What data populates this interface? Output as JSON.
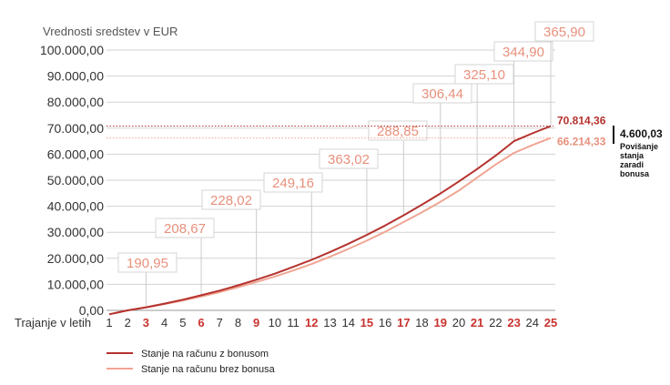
{
  "chart_data": {
    "type": "line",
    "ylabel": "Vrednosti sredstev v EUR",
    "xlabel": "Trajanje v letih",
    "ylim": [
      0,
      100000
    ],
    "y_ticks": [
      "0,00",
      "10.000,00",
      "20.000,00",
      "30.000,00",
      "40.000,00",
      "50.000,00",
      "60.000,00",
      "70.000,00",
      "80.000,00",
      "90.000,00",
      "100.000,00"
    ],
    "categories": [
      "1",
      "2",
      "3",
      "4",
      "5",
      "6",
      "7",
      "8",
      "9",
      "10",
      "11",
      "12",
      "13",
      "14",
      "15",
      "16",
      "17",
      "18",
      "19",
      "20",
      "21",
      "22",
      "23",
      "24",
      "25"
    ],
    "highlighted_years": [
      "3",
      "6",
      "9",
      "12",
      "15",
      "17",
      "19",
      "21",
      "23",
      "25"
    ],
    "series": [
      {
        "name": "Stanje na računu z bonusom",
        "color": "#b5322e",
        "values": [
          -1500,
          0,
          1200,
          2600,
          4100,
          5800,
          7600,
          9600,
          11800,
          14100,
          16700,
          19400,
          22400,
          25600,
          29000,
          32600,
          36500,
          40600,
          44900,
          49500,
          54300,
          59400,
          65000,
          68000,
          70814.36
        ],
        "end_label": "70.814,36"
      },
      {
        "name": "Stanje na računu brez bonusa",
        "color": "#f0a593",
        "values": [
          -1500,
          0,
          1100,
          2400,
          3800,
          5300,
          7000,
          8900,
          10900,
          13000,
          15300,
          17800,
          20600,
          23600,
          26800,
          30200,
          33900,
          37700,
          41700,
          46000,
          51000,
          56000,
          60500,
          63500,
          66214.33
        ],
        "end_label": "66.214,33"
      }
    ],
    "callouts": [
      {
        "year": "3",
        "label": "190,95"
      },
      {
        "year": "6",
        "label": "208,67"
      },
      {
        "year": "9",
        "label": "228,02"
      },
      {
        "year": "12",
        "label": "249,16"
      },
      {
        "year": "15",
        "label": "363,02"
      },
      {
        "year": "17",
        "label": "288,85"
      },
      {
        "year": "19",
        "label": "306,44"
      },
      {
        "year": "21",
        "label": "325,10"
      },
      {
        "year": "23",
        "label": "344,90"
      },
      {
        "year": "25",
        "label": "365,90"
      }
    ],
    "difference": {
      "value": "4.600,03",
      "label_lines": [
        "Povišanje",
        "stanja",
        "zaradi",
        "bonusa"
      ]
    },
    "grid": true,
    "legend_position": "bottom-left"
  }
}
